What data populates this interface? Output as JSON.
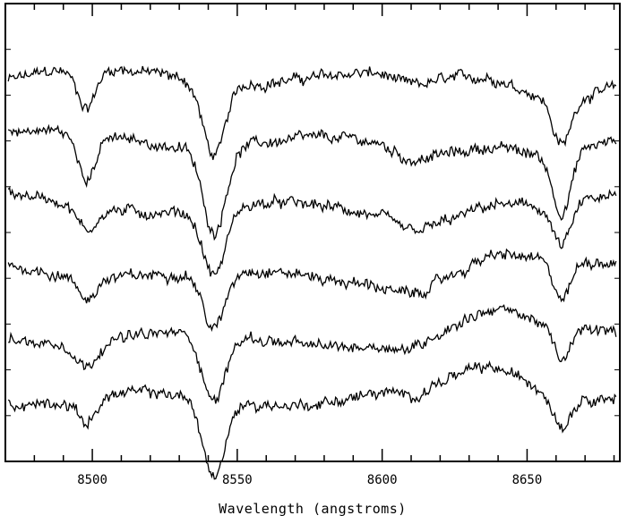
{
  "chart_data": {
    "type": "line",
    "title": "",
    "xlabel": "Wavelength (angstroms)",
    "ylabel": "",
    "xlim": [
      8470,
      8682
    ],
    "ylim": [
      0,
      6.5
    ],
    "x_ticks": [
      8500,
      8550,
      8600,
      8650
    ],
    "x_tick_labels": [
      "8500",
      "8550",
      "8600",
      "8650"
    ],
    "grid": false,
    "legend": "none",
    "line_color": "#000000",
    "series_description": "Six vertically offset stellar spectra; each shows Ca II triplet absorption dips near 8498, 8542 and 8662 angstroms.",
    "series": [
      {
        "offset": 5.4,
        "depths": [
          0.55,
          1.05,
          0.7
        ],
        "noise": 0.12,
        "slope": 0.35
      },
      {
        "offset": 4.5,
        "depths": [
          0.6,
          1.2,
          0.85
        ],
        "noise": 0.12,
        "slope": 0.3
      },
      {
        "offset": 3.6,
        "depths": [
          0.35,
          0.95,
          0.6
        ],
        "noise": 0.12,
        "slope": 0.28
      },
      {
        "offset": 2.7,
        "depths": [
          0.3,
          0.85,
          0.55
        ],
        "noise": 0.12,
        "slope": 0.3
      },
      {
        "offset": 1.8,
        "depths": [
          0.35,
          0.95,
          0.5
        ],
        "noise": 0.12,
        "slope": 0.28
      },
      {
        "offset": 0.95,
        "depths": [
          0.35,
          1.1,
          0.45
        ],
        "noise": 0.12,
        "slope": 0.25
      }
    ]
  }
}
